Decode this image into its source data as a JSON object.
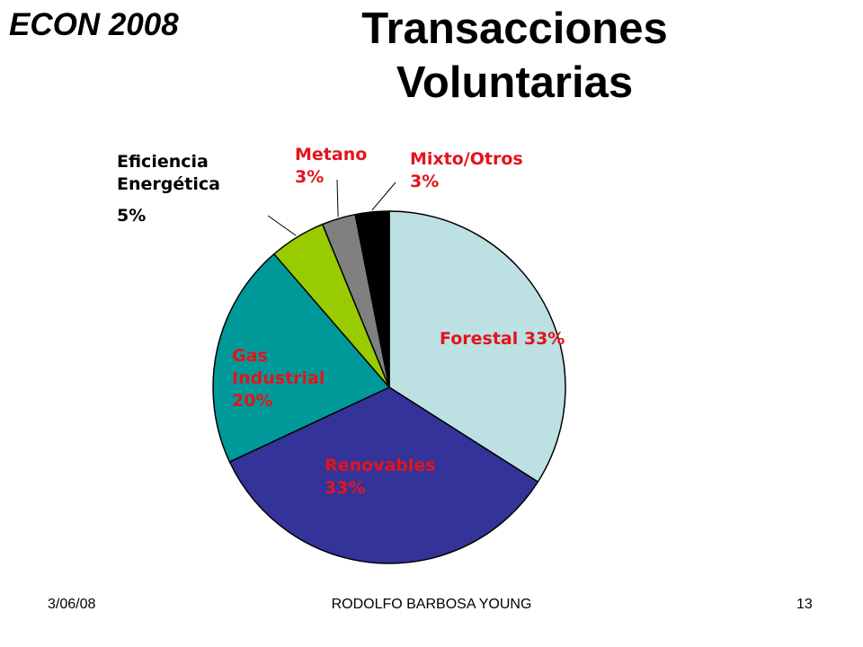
{
  "slide": {
    "corner_title": "ECON 2008",
    "title_line1": "Transacciones",
    "title_line2": "Voluntarias"
  },
  "footer": {
    "date": "3/06/08",
    "author": "RODOLFO BARBOSA YOUNG",
    "page": "13"
  },
  "chart_data": {
    "type": "pie",
    "title": "Transacciones Voluntarias",
    "slices": [
      {
        "name": "Forestal",
        "value": 33,
        "value_label": "33%",
        "color": "#bde0e3",
        "label_color": "#e3141b"
      },
      {
        "name": "Renovables",
        "value": 33,
        "value_label": "33%",
        "color": "#333399",
        "label_color": "#e3141b"
      },
      {
        "name": "Gas Industrial",
        "name_lines": [
          "Gas",
          "Industrial"
        ],
        "value": 20,
        "value_label": "20%",
        "color": "#009999",
        "label_color": "#e3141b"
      },
      {
        "name": "Eficiencia Energética",
        "name_lines": [
          "Eficiencia",
          "Energética"
        ],
        "value": 5,
        "value_label": "5%",
        "color": "#99cc00",
        "label_color": "#000000"
      },
      {
        "name": "Metano",
        "value": 3,
        "value_label": "3%",
        "color": "#808080",
        "label_color": "#e3141b"
      },
      {
        "name": "Mixto/Otros",
        "value": 3,
        "value_label": "3%",
        "color": "#000000",
        "label_color": "#e3141b"
      }
    ],
    "legend": "none",
    "start": "12 o'clock, clockwise"
  }
}
